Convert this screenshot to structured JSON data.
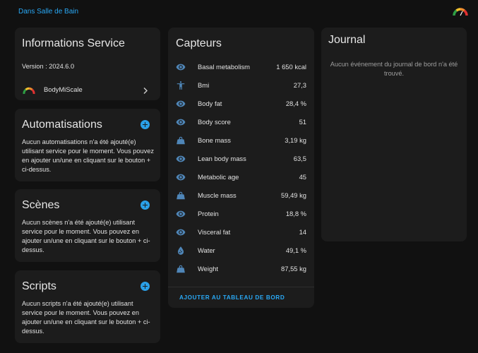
{
  "breadcrumb": "Dans Salle de Bain",
  "info": {
    "title": "Informations Service",
    "version": "Version : 2024.6.0",
    "integration": "BodyMiScale"
  },
  "automations": {
    "title": "Automatisations",
    "text": "Aucun automatisations n'a été ajouté(e) utilisant service pour le moment. Vous pouvez en ajouter un/une en cliquant sur le bouton + ci-dessus."
  },
  "scenes": {
    "title": "Scènes",
    "text": "Aucun scènes n'a été ajouté(e) utilisant service pour le moment. Vous pouvez en ajouter un/une en cliquant sur le bouton + ci-dessus."
  },
  "scripts": {
    "title": "Scripts",
    "text": "Aucun scripts n'a été ajouté(e) utilisant service pour le moment. Vous pouvez en ajouter un/une en cliquant sur le bouton + ci-dessus."
  },
  "sensors": {
    "title": "Capteurs",
    "items": [
      {
        "name": "Basal metabolism",
        "value": "1 650 kcal",
        "icon": "eye-icon"
      },
      {
        "name": "Bmi",
        "value": "27,3",
        "icon": "human-icon"
      },
      {
        "name": "Body fat",
        "value": "28,4 %",
        "icon": "eye-icon"
      },
      {
        "name": "Body score",
        "value": "51",
        "icon": "eye-icon"
      },
      {
        "name": "Bone mass",
        "value": "3,19 kg",
        "icon": "weight-icon"
      },
      {
        "name": "Lean body mass",
        "value": "63,5",
        "icon": "eye-icon"
      },
      {
        "name": "Metabolic age",
        "value": "45",
        "icon": "eye-icon"
      },
      {
        "name": "Muscle mass",
        "value": "59,49 kg",
        "icon": "weight-icon"
      },
      {
        "name": "Protein",
        "value": "18,8 %",
        "icon": "eye-icon"
      },
      {
        "name": "Visceral fat",
        "value": "14",
        "icon": "eye-icon"
      },
      {
        "name": "Water",
        "value": "49,1 %",
        "icon": "water-icon"
      },
      {
        "name": "Weight",
        "value": "87,55 kg",
        "icon": "weight-icon"
      }
    ],
    "add_to_dashboard": "AJOUTER AU TABLEAU DE BORD"
  },
  "journal": {
    "title": "Journal",
    "empty_text": "Aucun événement du journal de bord n'a été trouvé."
  },
  "colors": {
    "accent": "#29a8f5",
    "card_bg": "#1c1c1c",
    "page_bg": "#111111",
    "icon": "#4f86b8"
  }
}
